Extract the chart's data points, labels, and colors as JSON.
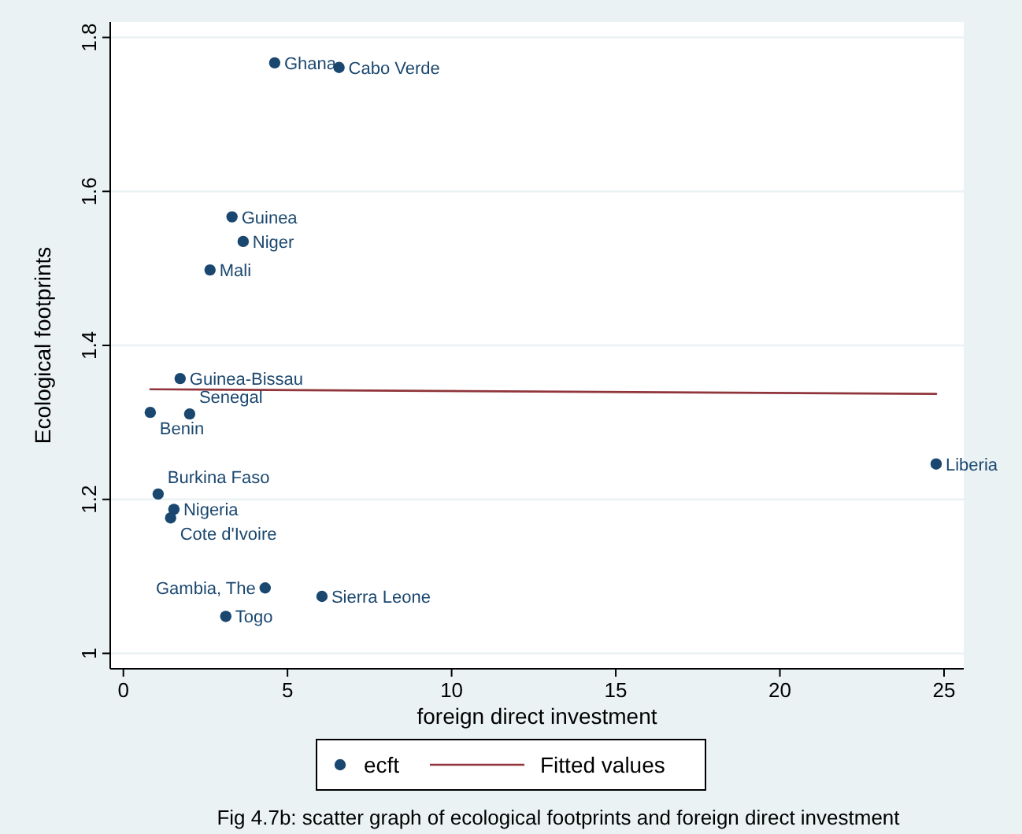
{
  "chart_data": {
    "type": "scatter",
    "xlabel": "foreign direct investment",
    "ylabel": "Ecological footprints",
    "xlim": [
      -0.4,
      25.6
    ],
    "xticks": [
      0,
      5,
      10,
      15,
      20,
      25
    ],
    "ylim": [
      0.98,
      1.82
    ],
    "yticks": [
      1,
      1.2,
      1.4,
      1.6,
      1.8
    ],
    "grid": "y",
    "legend": "bottom",
    "series": [
      {
        "name": "ecft",
        "marker": "circle",
        "color": "#1a476f",
        "x": [
          4.61,
          6.57,
          3.31,
          3.65,
          2.64,
          1.73,
          0.82,
          2.02,
          1.06,
          1.54,
          1.44,
          4.32,
          6.05,
          3.12,
          24.76
        ],
        "values": [
          1.767,
          1.761,
          1.567,
          1.535,
          1.498,
          1.357,
          1.313,
          1.311,
          1.207,
          1.187,
          1.176,
          1.085,
          1.074,
          1.048,
          1.246
        ],
        "value_labels": [
          "Ghana",
          "Cabo Verde",
          "Guinea",
          "Niger",
          "Mali",
          "Guinea-Bissau",
          "Benin",
          "Senegal",
          "Burkina Faso",
          "Nigeria",
          "Cote d'Ivoire",
          "Gambia, The",
          "Sierra Leone",
          "Togo",
          "Liberia"
        ]
      },
      {
        "name": "Fitted values",
        "type": "line",
        "marker": "none",
        "color": "#90353b",
        "line_style": "solid",
        "x": [
          0.82,
          24.76
        ],
        "values": [
          1.343,
          1.337
        ]
      }
    ],
    "annotations": [
      "Fig 4.7b: scatter graph of ecological footprints and foreign direct investment"
    ]
  }
}
